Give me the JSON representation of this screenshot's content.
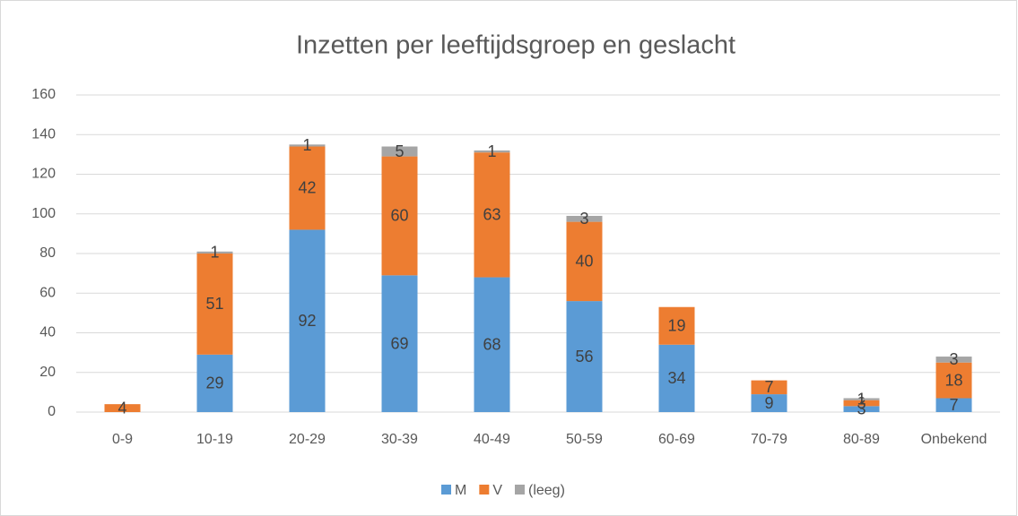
{
  "chart_data": {
    "type": "stacked_bar",
    "title": "Inzetten per leeftijdsgroep en geslacht",
    "categories": [
      "0-9",
      "10-19",
      "20-29",
      "30-39",
      "40-49",
      "50-59",
      "60-69",
      "70-79",
      "80-89",
      "Onbekend"
    ],
    "series": [
      {
        "name": "M",
        "color": "#5b9bd5",
        "values": [
          null,
          29,
          92,
          69,
          68,
          56,
          34,
          9,
          3,
          7
        ]
      },
      {
        "name": "V",
        "color": "#ed7d31",
        "values": [
          4,
          51,
          42,
          60,
          63,
          40,
          19,
          7,
          3,
          18
        ]
      },
      {
        "name": "(leeg)",
        "color": "#a5a5a5",
        "values": [
          null,
          1,
          1,
          5,
          1,
          3,
          null,
          null,
          1,
          3
        ]
      }
    ],
    "ylim": [
      0,
      160
    ],
    "yticks": [
      0,
      20,
      40,
      60,
      80,
      100,
      120,
      140,
      160
    ],
    "grid": true,
    "legend": "bottom"
  }
}
